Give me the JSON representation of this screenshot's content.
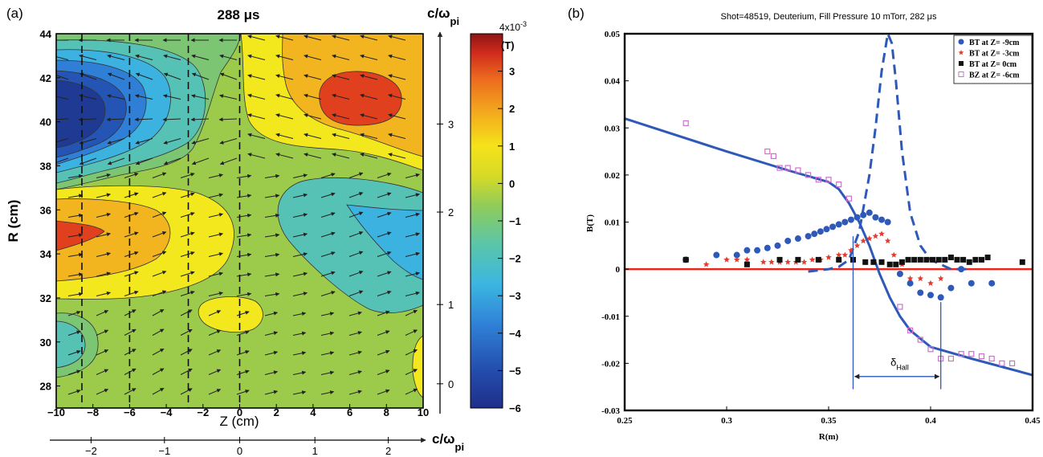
{
  "panel_a": {
    "label": "(a)",
    "title": "288 μs",
    "xlabel": "Z (cm)",
    "ylabel": "R (cm)",
    "right_axis_label": "c/ω",
    "right_axis_sub": "pi",
    "bottom_axis_label": "c/ω",
    "bottom_axis_sub": "pi",
    "colorbar_unit": "(T)",
    "colorbar_exponent": "4x10",
    "colorbar_exponent_power": "-3",
    "colors": {
      "n6": "#1f3a93",
      "n5": "#2455b5",
      "n4": "#2f7fd6",
      "n3": "#3bb2e0",
      "n2": "#56c2b6",
      "n1": "#7cc573",
      "z0": "#9ccb4c",
      "p0": "#d8d928",
      "p1": "#f2e81d",
      "p2": "#f3b51f",
      "p3": "#ee8a22",
      "p4": "#e0401e",
      "p5": "#a61b1b"
    }
  },
  "panel_b": {
    "label": "(b)",
    "title": "Shot=48519, Deuterium, Fill Pressure 10 mTorr, 282 μs",
    "xlabel": "R(m)",
    "ylabel": "B(T)",
    "annotation": "δ",
    "annotation_sub": "Hall",
    "colors": {
      "blue": "#2e59b8",
      "red": "#e33b2e",
      "black": "#111111",
      "pink": "#d06fd0",
      "zero_line": "#e8271b"
    }
  },
  "chart_data": [
    {
      "type": "heatmap",
      "title": "288 μs",
      "xlabel": "Z (cm)",
      "ylabel": "R (cm)",
      "xlim": [
        -10,
        10
      ],
      "ylim": [
        27,
        44
      ],
      "x_ticks": [
        -10,
        -8,
        -6,
        -4,
        -2,
        0,
        2,
        4,
        6,
        8,
        10
      ],
      "y_ticks": [
        28,
        30,
        32,
        34,
        36,
        38,
        40,
        42,
        44
      ],
      "colorbar": {
        "ticks": [
          3,
          2,
          1,
          0,
          -1,
          -2,
          -3,
          -4,
          -5,
          -6
        ],
        "top_label": "4x10-3",
        "unit": "(T)",
        "range": [
          -6,
          4
        ]
      },
      "right_axis": {
        "label": "c/ωpi",
        "ticks": [
          0,
          1,
          2,
          3
        ],
        "tick_R": [
          28.1,
          31.7,
          35.9,
          39.9
        ]
      },
      "bottom_axis": {
        "label": "c/ωpi",
        "ticks": [
          -2,
          -1,
          0,
          1,
          2
        ],
        "tick_Z": [
          -8.1,
          -4.1,
          0,
          4.1,
          8.1
        ]
      },
      "dashed_lines_Z": [
        -8.6,
        -6,
        -2.8,
        0
      ],
      "contour_regions": [
        {
          "level": -6,
          "center": [
            -8,
            40.5
          ]
        },
        {
          "level": -5,
          "center": [
            -6,
            40.5
          ]
        },
        {
          "level": 3,
          "center": [
            6,
            41
          ]
        },
        {
          "level": 2,
          "center": [
            5,
            41
          ]
        },
        {
          "level": 3,
          "center": [
            -9.5,
            35
          ]
        },
        {
          "level": 2,
          "center": [
            -7.5,
            35
          ]
        },
        {
          "level": -2,
          "center": [
            7.5,
            34.5
          ]
        },
        {
          "level": -3,
          "center": [
            9.2,
            34
          ]
        },
        {
          "level": -2,
          "center": [
            -9.2,
            30
          ]
        },
        {
          "level": 0,
          "center": [
            0.5,
            31.5
          ]
        }
      ]
    },
    {
      "type": "scatter",
      "title": "Shot=48519, Deuterium, Fill Pressure 10 mTorr, 282 μs",
      "xlabel": "R(m)",
      "ylabel": "B(T)",
      "xlim": [
        0.25,
        0.45
      ],
      "ylim": [
        -0.03,
        0.05
      ],
      "x_ticks": [
        0.25,
        0.3,
        0.35,
        0.4,
        0.45
      ],
      "y_ticks": [
        -0.03,
        -0.02,
        -0.01,
        0,
        0.01,
        0.02,
        0.03,
        0.04,
        0.05
      ],
      "legend_position": "top-right",
      "series": [
        {
          "name": "BT at Z= -9cm",
          "marker": "circle",
          "color": "#2e59b8",
          "x": [
            0.28,
            0.295,
            0.305,
            0.31,
            0.315,
            0.32,
            0.325,
            0.33,
            0.335,
            0.34,
            0.343,
            0.346,
            0.349,
            0.352,
            0.355,
            0.358,
            0.361,
            0.364,
            0.367,
            0.37,
            0.373,
            0.376,
            0.379,
            0.385,
            0.39,
            0.395,
            0.4,
            0.405,
            0.41,
            0.415,
            0.42,
            0.43
          ],
          "y": [
            0.002,
            0.003,
            0.003,
            0.004,
            0.004,
            0.0045,
            0.005,
            0.006,
            0.0065,
            0.007,
            0.0075,
            0.008,
            0.0085,
            0.009,
            0.0095,
            0.01,
            0.0105,
            0.011,
            0.0115,
            0.012,
            0.011,
            0.0105,
            0.01,
            -0.001,
            -0.003,
            -0.005,
            -0.0055,
            -0.006,
            -0.004,
            0.0,
            -0.003,
            -0.003
          ]
        },
        {
          "name": "BT at Z= -3cm",
          "marker": "star",
          "color": "#e33b2e",
          "x": [
            0.28,
            0.29,
            0.3,
            0.305,
            0.31,
            0.318,
            0.322,
            0.326,
            0.33,
            0.334,
            0.338,
            0.342,
            0.346,
            0.35,
            0.355,
            0.358,
            0.361,
            0.364,
            0.367,
            0.37,
            0.373,
            0.376,
            0.379,
            0.382,
            0.386,
            0.39,
            0.395,
            0.4,
            0.405
          ],
          "y": [
            0.002,
            0.001,
            0.002,
            0.002,
            0.002,
            0.0015,
            0.0015,
            0.0015,
            0.0015,
            0.0015,
            0.0015,
            0.002,
            0.002,
            0.0025,
            0.003,
            0.003,
            0.004,
            0.005,
            0.006,
            0.0065,
            0.007,
            0.0075,
            0.006,
            0.003,
            0.001,
            -0.002,
            -0.002,
            -0.003,
            -0.002
          ]
        },
        {
          "name": "BT at Z= 0cm",
          "marker": "square",
          "color": "#111111",
          "x": [
            0.28,
            0.31,
            0.326,
            0.335,
            0.345,
            0.355,
            0.362,
            0.368,
            0.372,
            0.376,
            0.38,
            0.383,
            0.386,
            0.389,
            0.392,
            0.395,
            0.398,
            0.401,
            0.404,
            0.407,
            0.41,
            0.413,
            0.416,
            0.419,
            0.422,
            0.425,
            0.428,
            0.445
          ],
          "y": [
            0.002,
            0.001,
            0.002,
            0.002,
            0.002,
            0.002,
            0.002,
            0.0015,
            0.0015,
            0.0015,
            0.001,
            0.001,
            0.0015,
            0.002,
            0.002,
            0.002,
            0.002,
            0.002,
            0.002,
            0.002,
            0.0025,
            0.002,
            0.002,
            0.0015,
            0.002,
            0.002,
            0.0025,
            0.0015
          ]
        },
        {
          "name": "BZ at Z= -6cm",
          "marker": "open-square",
          "color": "#d06fd0",
          "x": [
            0.28,
            0.32,
            0.323,
            0.326,
            0.33,
            0.335,
            0.34,
            0.345,
            0.35,
            0.355,
            0.36,
            0.385,
            0.39,
            0.395,
            0.4,
            0.405,
            0.41,
            0.415,
            0.42,
            0.425,
            0.43,
            0.435,
            0.44
          ],
          "y": [
            0.031,
            0.025,
            0.024,
            0.0215,
            0.0215,
            0.021,
            0.02,
            0.019,
            0.019,
            0.018,
            0.015,
            -0.008,
            -0.013,
            -0.015,
            -0.017,
            -0.019,
            -0.019,
            -0.018,
            -0.018,
            -0.0185,
            -0.019,
            -0.02,
            -0.02
          ]
        },
        {
          "name": "model (solid)",
          "style": "solid-line",
          "color": "#2e59b8",
          "x": [
            0.25,
            0.3,
            0.33,
            0.35,
            0.355,
            0.36,
            0.365,
            0.37,
            0.375,
            0.38,
            0.385,
            0.39,
            0.4,
            0.42,
            0.45
          ],
          "y": [
            0.032,
            0.025,
            0.021,
            0.0185,
            0.017,
            0.014,
            0.01,
            0.005,
            -0.001,
            -0.006,
            -0.01,
            -0.013,
            -0.0165,
            -0.019,
            -0.0225
          ]
        },
        {
          "name": "model (dashed)",
          "style": "dashed-line",
          "color": "#2e59b8",
          "x": [
            0.34,
            0.35,
            0.355,
            0.36,
            0.365,
            0.37,
            0.373,
            0.376,
            0.379,
            0.381,
            0.383,
            0.386,
            0.39,
            0.395,
            0.4,
            0.41,
            0.42
          ],
          "y": [
            -0.0005,
            0.0,
            0.0005,
            0.002,
            0.008,
            0.02,
            0.03,
            0.042,
            0.05,
            0.048,
            0.04,
            0.025,
            0.012,
            0.005,
            0.002,
            0.0,
            0.0
          ]
        }
      ],
      "hall_markers": {
        "x_left": 0.362,
        "x_right": 0.405,
        "label": "δHall"
      }
    }
  ]
}
